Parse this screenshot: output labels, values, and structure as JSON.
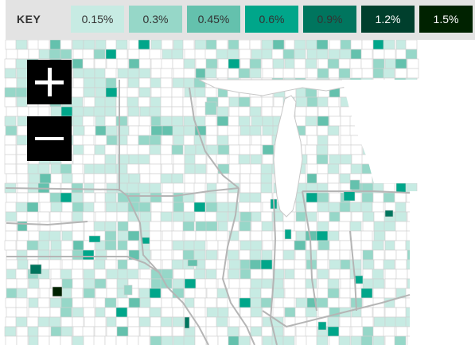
{
  "legend": {
    "title": "KEY",
    "items": [
      {
        "label": "0.15%",
        "color": "#c7ebe3",
        "text_color": "#333333"
      },
      {
        "label": "0.3%",
        "color": "#96d7c8",
        "text_color": "#333333"
      },
      {
        "label": "0.45%",
        "color": "#64c1ad",
        "text_color": "#333333"
      },
      {
        "label": "0.6%",
        "color": "#00a68a",
        "text_color": "#333333"
      },
      {
        "label": "0.9%",
        "color": "#00755e",
        "text_color": "#333333"
      },
      {
        "label": "1.2%",
        "color": "#003f2d",
        "text_color": "#ffffff"
      },
      {
        "label": "1.5%",
        "color": "#002200",
        "text_color": "#ffffff"
      }
    ]
  },
  "map": {
    "base_fill": "#ffffff",
    "county_stroke": "#cfcfcf",
    "state_stroke": "#b5b5b5",
    "lake_color": "#ffffff"
  },
  "controls": {
    "zoom_in_icon": "plus-icon",
    "zoom_out_icon": "minus-icon"
  }
}
